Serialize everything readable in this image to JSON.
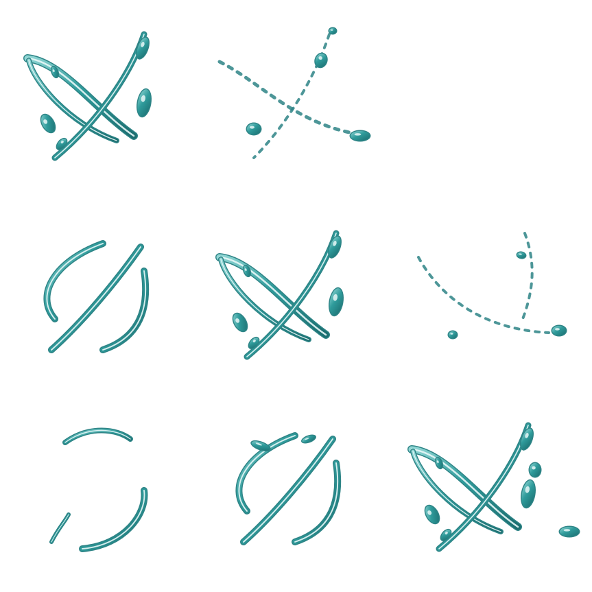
{
  "sheet": {
    "frames": [
      {
        "style": "cross"
      },
      {
        "style": "cross-dissolve"
      },
      {
        "style": "arcs"
      },
      {
        "style": "cross"
      },
      {
        "style": "dissolve"
      },
      {
        "style": "arcs-thin"
      },
      {
        "style": "arcs-bold"
      },
      {
        "style": "cross-splash"
      }
    ],
    "colors": {
      "background": "#ffffff",
      "outline": "#2e8486",
      "fill": "#7fcaca",
      "highlight": "#e8f7f7",
      "shadow": "#1c6f72"
    }
  }
}
